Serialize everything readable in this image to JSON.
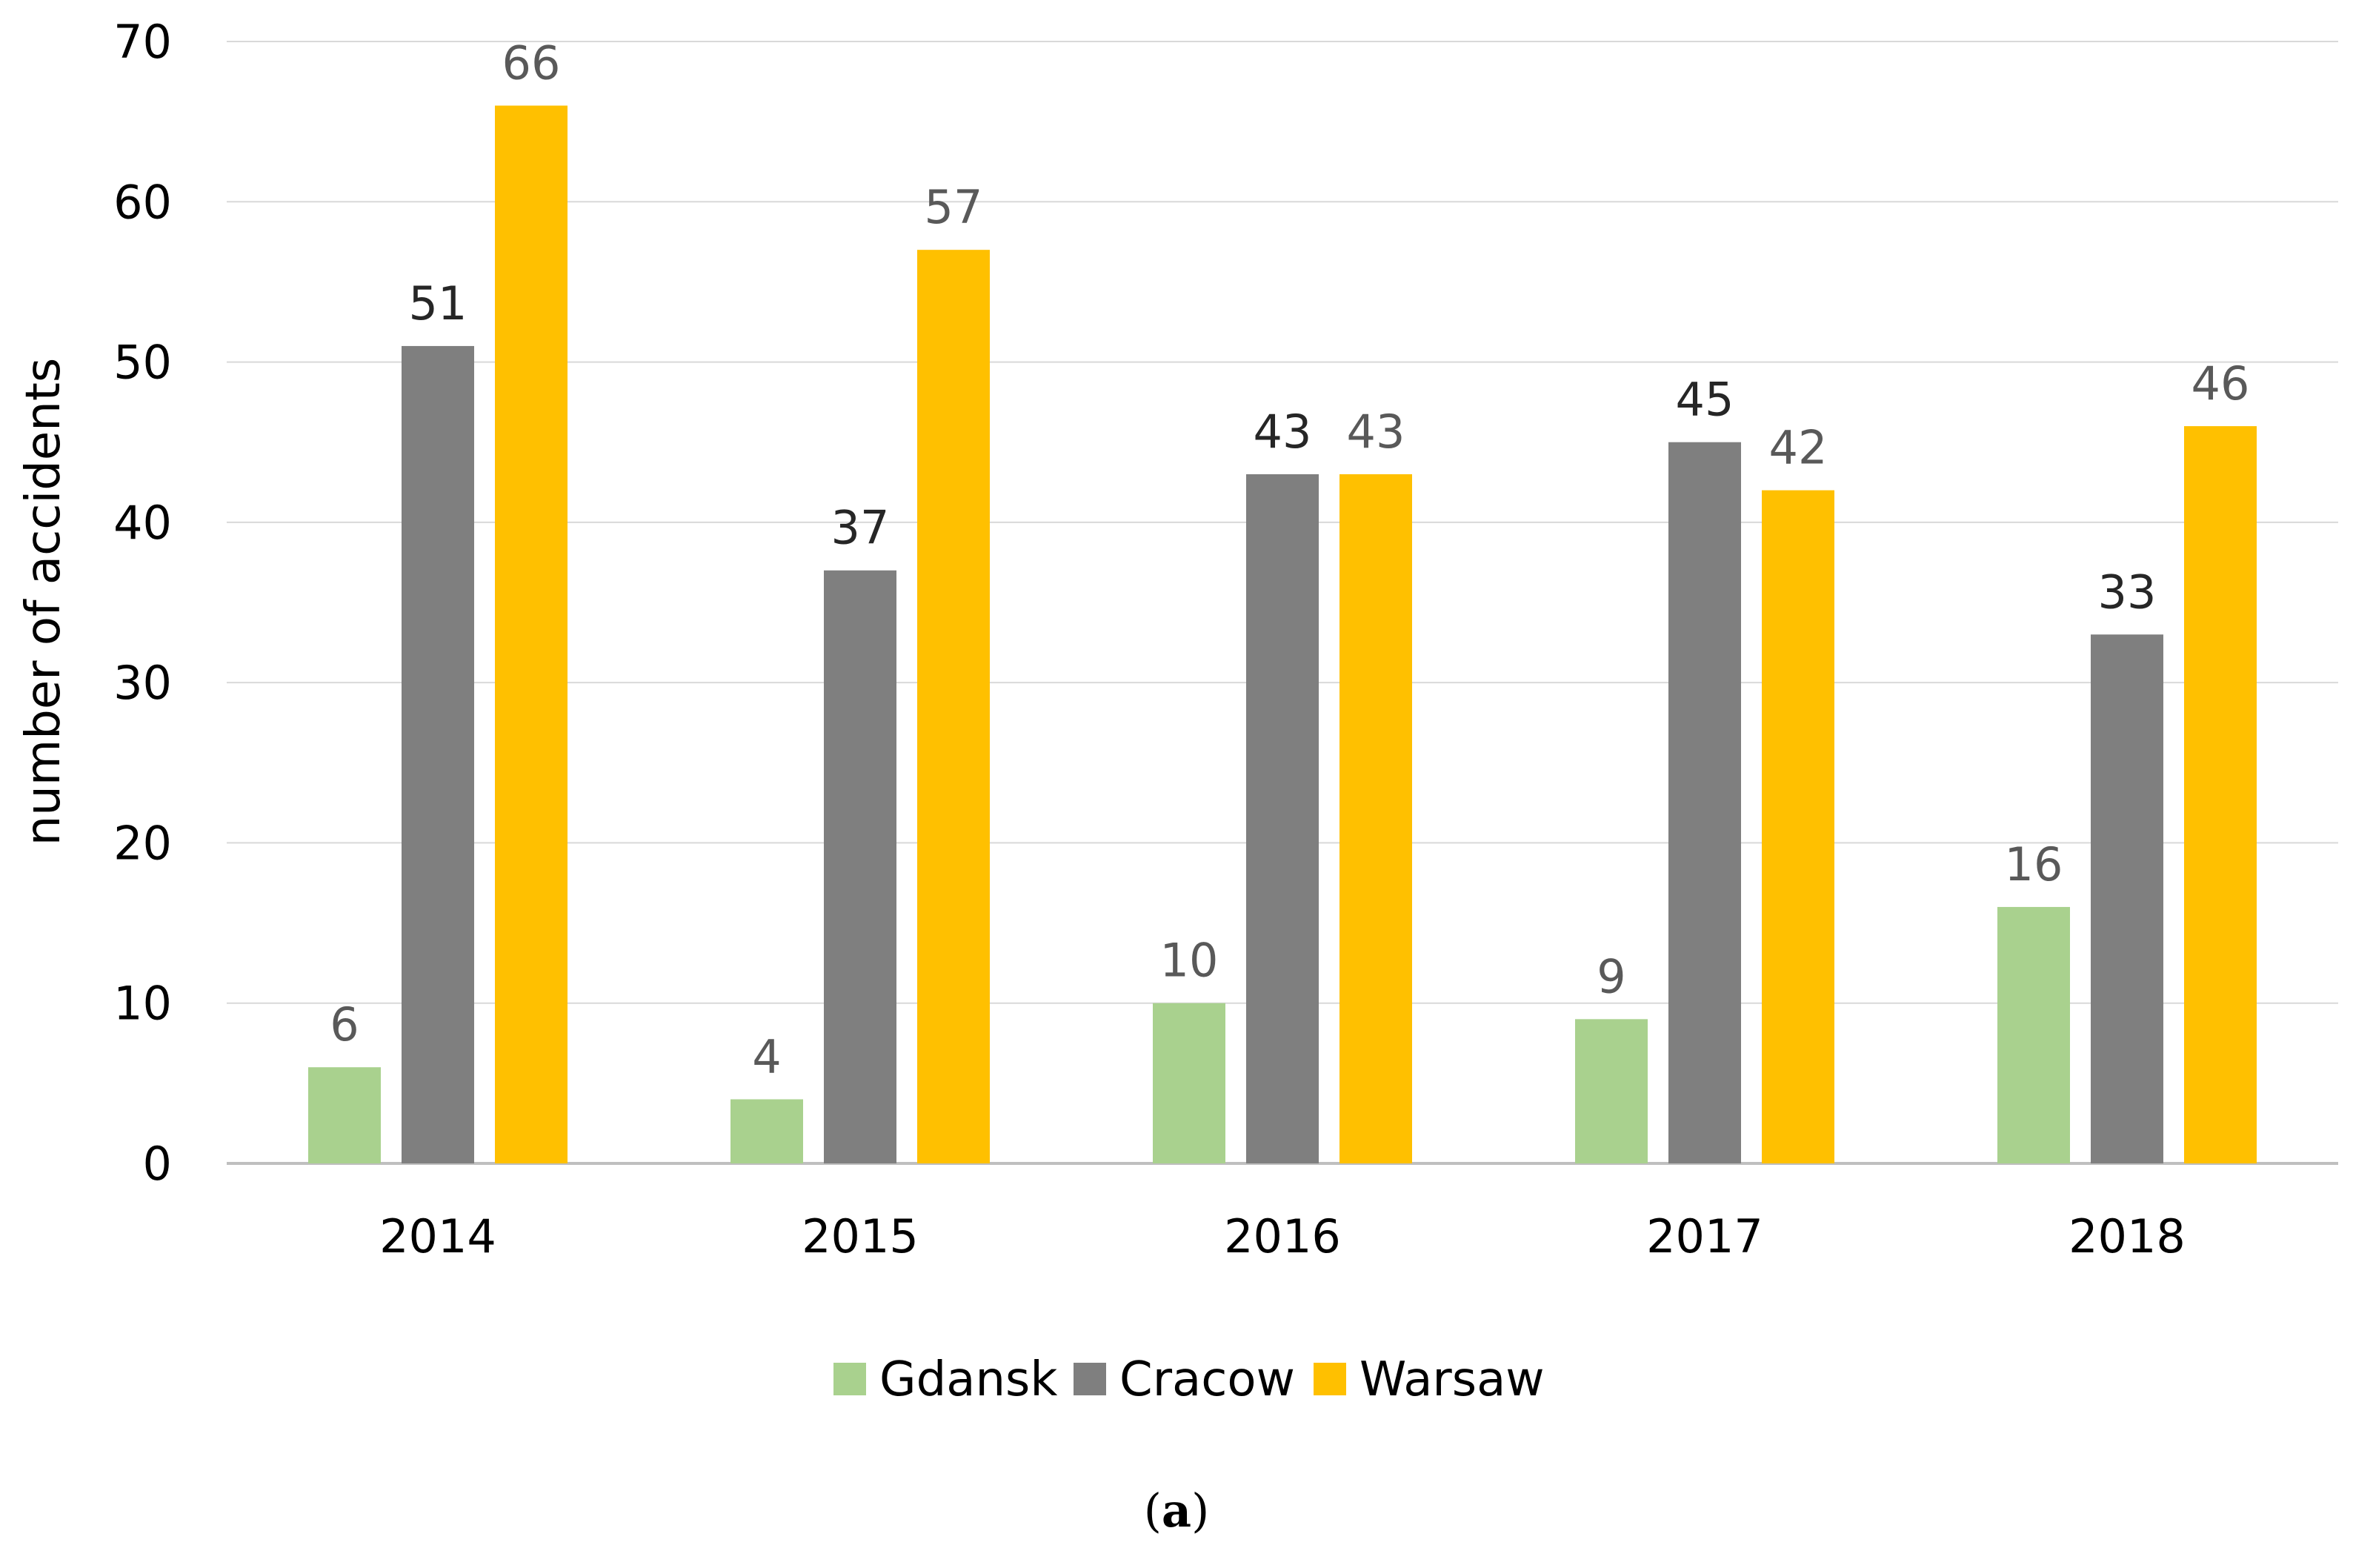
{
  "chart_data": {
    "type": "bar",
    "title": "",
    "xlabel": "",
    "ylabel": "number of accidents",
    "ylim": [
      0,
      70
    ],
    "yticks": [
      0,
      10,
      20,
      30,
      40,
      50,
      60,
      70
    ],
    "grid": true,
    "legend_position": "bottom",
    "categories": [
      "2014",
      "2015",
      "2016",
      "2017",
      "2018"
    ],
    "series": [
      {
        "name": "Gdansk",
        "color": "#A9D18E",
        "label_color": "#595959",
        "values": [
          6,
          4,
          10,
          9,
          16
        ]
      },
      {
        "name": "Cracow",
        "color": "#7F7F7F",
        "label_color": "#262626",
        "values": [
          51,
          37,
          43,
          45,
          33
        ]
      },
      {
        "name": "Warsaw",
        "color": "#FFC000",
        "label_color": "#595959",
        "values": [
          66,
          57,
          43,
          42,
          46
        ]
      }
    ]
  },
  "caption": {
    "open": "(",
    "letter": "a",
    "close": ")"
  }
}
